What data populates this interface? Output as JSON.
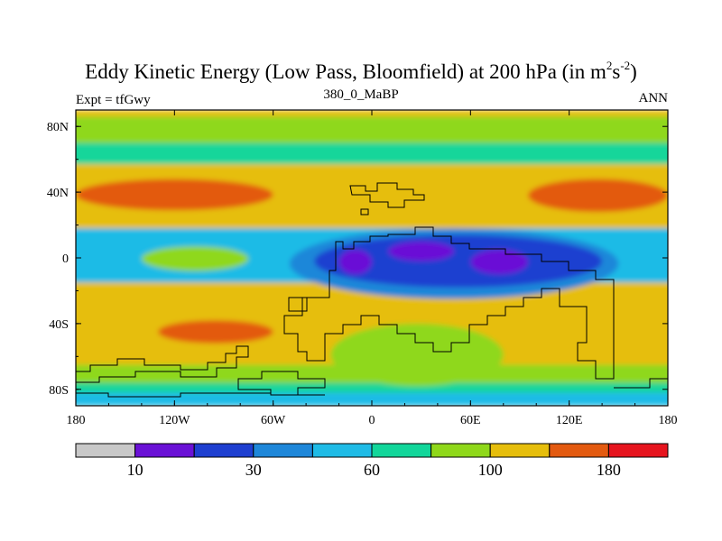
{
  "title": {
    "main": "Eddy Kinetic Energy (Low Pass, Bloomfield) at 200 hPa (in m",
    "sup1": "2",
    "mid": "s",
    "sup2": "-2",
    "end": ")"
  },
  "subtitle_left": "Expt = tfGwy",
  "subtitle_center": "380_0_MaBP",
  "subtitle_right": "ANN",
  "chart_data": {
    "type": "heatmap",
    "title": "Eddy Kinetic Energy (Low Pass, Bloomfield) at 200 hPa (in m^2 s^-2)",
    "x_ticks": [
      "180",
      "120W",
      "60W",
      "0",
      "60E",
      "120E",
      "180"
    ],
    "x_tick_values": [
      -180,
      -120,
      -60,
      0,
      60,
      120,
      180
    ],
    "y_ticks": [
      "80N",
      "40N",
      "0",
      "40S",
      "80S"
    ],
    "y_tick_values": [
      80,
      40,
      0,
      -40,
      -80
    ],
    "xlim": [
      -180,
      180
    ],
    "ylim": [
      -90,
      90
    ],
    "colorbar": {
      "colors": [
        "#c8c8c8",
        "#6a11d6",
        "#1e3fd0",
        "#1e87d9",
        "#1fbbe6",
        "#12d69a",
        "#8fd81a",
        "#e6be0c",
        "#e35a10",
        "#e6141e"
      ],
      "labels": [
        "10",
        "30",
        "60",
        "100",
        "180"
      ],
      "label_after_box": [
        1,
        3,
        5,
        7,
        9
      ]
    },
    "fields": {
      "background_band": [
        {
          "level": 7,
          "lat_top": 90,
          "lat_bottom": 86
        },
        {
          "level": 6,
          "lat_top": 86,
          "lat_bottom": 70
        },
        {
          "level": 5,
          "lat_top": 70,
          "lat_bottom": 57
        },
        {
          "level": 7,
          "lat_top": 57,
          "lat_bottom": 18
        },
        {
          "level": 4,
          "lat_top": 18,
          "lat_bottom": -15
        },
        {
          "level": 7,
          "lat_top": -15,
          "lat_bottom": -65
        },
        {
          "level": 6,
          "lat_top": -65,
          "lat_bottom": -76
        },
        {
          "level": 5,
          "lat_top": -76,
          "lat_bottom": -82
        },
        {
          "level": 4,
          "lat_top": -82,
          "lat_bottom": -90
        }
      ],
      "blobs": [
        {
          "level": 8,
          "lon": [
            -180,
            -60
          ],
          "lat": [
            48,
            29
          ]
        },
        {
          "level": 8,
          "lon": [
            95,
            180
          ],
          "lat": [
            48,
            28
          ]
        },
        {
          "level": 8,
          "lon": [
            -130,
            -60
          ],
          "lat": [
            -38,
            -52
          ]
        },
        {
          "level": 3,
          "lon": [
            -50,
            150
          ],
          "lat": [
            18,
            -25
          ]
        },
        {
          "level": 2,
          "lon": [
            -35,
            140
          ],
          "lat": [
            14,
            -18
          ]
        },
        {
          "level": 1,
          "lon": [
            -20,
            0
          ],
          "lat": [
            5,
            -10
          ]
        },
        {
          "level": 1,
          "lon": [
            10,
            50
          ],
          "lat": [
            10,
            -2
          ]
        },
        {
          "level": 1,
          "lon": [
            60,
            95
          ],
          "lat": [
            5,
            -10
          ]
        },
        {
          "level": 6,
          "lon": [
            -140,
            -75
          ],
          "lat": [
            7,
            -8
          ]
        },
        {
          "level": 6,
          "lon": [
            -25,
            80
          ],
          "lat": [
            -40,
            -78
          ]
        },
        {
          "level": 6,
          "lon": [
            -180,
            -100
          ],
          "lat": [
            -65,
            -76
          ]
        }
      ]
    }
  }
}
